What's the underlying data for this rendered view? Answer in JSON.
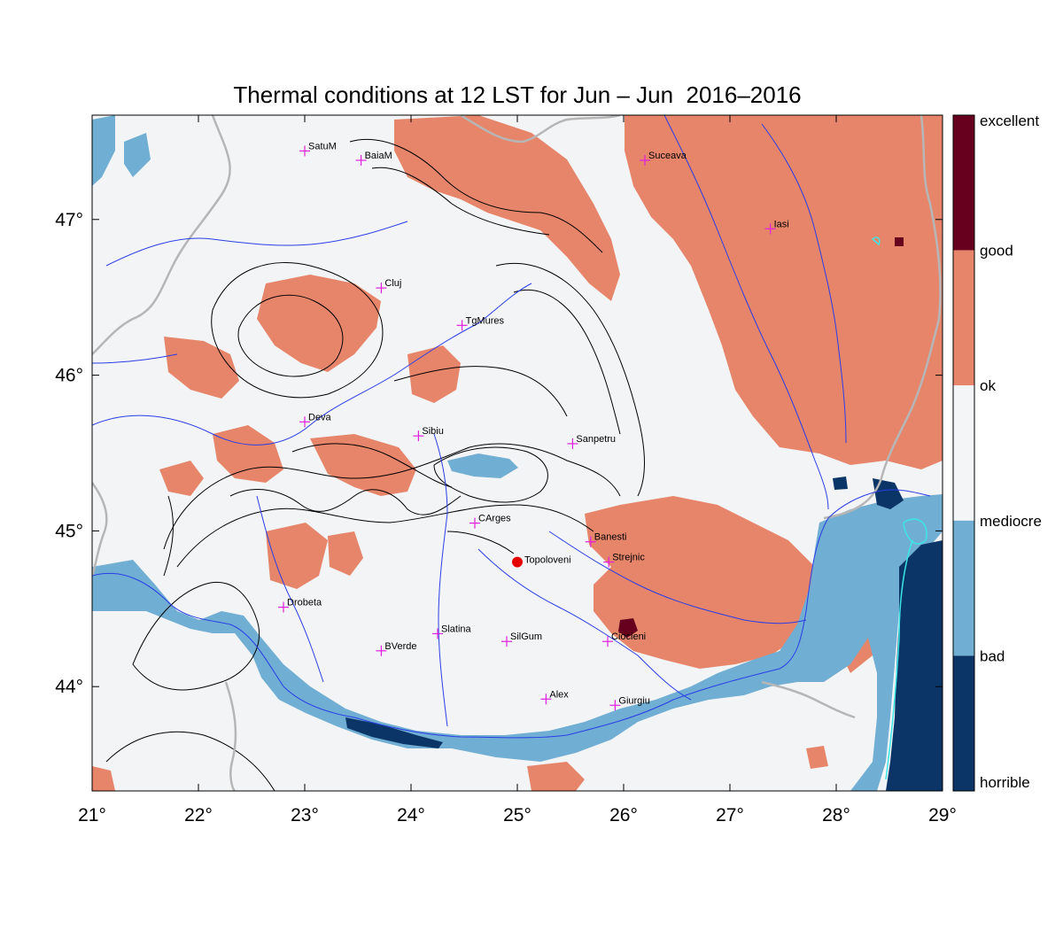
{
  "title": "Thermal conditions at 12 LST for Jun – Jun  2016–2016",
  "map": {
    "lon_range": [
      21,
      29
    ],
    "lat_range": [
      43.33,
      47.67
    ],
    "lon_ticks": [
      "21°",
      "22°",
      "23°",
      "24°",
      "25°",
      "26°",
      "27°",
      "28°",
      "29°"
    ],
    "lat_ticks": [
      "44°",
      "45°",
      "46°",
      "47°"
    ],
    "cities": [
      {
        "name": "SatuM",
        "lon": 23.0,
        "lat": 47.44
      },
      {
        "name": "BaiaM",
        "lon": 23.53,
        "lat": 47.38
      },
      {
        "name": "Suceava",
        "lon": 26.2,
        "lat": 47.38
      },
      {
        "name": "Iasi",
        "lon": 27.38,
        "lat": 46.94
      },
      {
        "name": "Cluj",
        "lon": 23.72,
        "lat": 46.56
      },
      {
        "name": "TgMures",
        "lon": 24.48,
        "lat": 46.32
      },
      {
        "name": "Deva",
        "lon": 23.0,
        "lat": 45.7
      },
      {
        "name": "Sibiu",
        "lon": 24.07,
        "lat": 45.61
      },
      {
        "name": "Sanpetru",
        "lon": 25.52,
        "lat": 45.56
      },
      {
        "name": "CArges",
        "lon": 24.6,
        "lat": 45.05
      },
      {
        "name": "Banesti",
        "lon": 25.69,
        "lat": 44.93
      },
      {
        "name": "Strejnic",
        "lon": 25.86,
        "lat": 44.8
      },
      {
        "name": "Drobeta",
        "lon": 22.8,
        "lat": 44.51
      },
      {
        "name": "Slatina",
        "lon": 24.25,
        "lat": 44.34
      },
      {
        "name": "SilGum",
        "lon": 24.9,
        "lat": 44.29
      },
      {
        "name": "Ciocieni",
        "lon": 25.85,
        "lat": 44.29
      },
      {
        "name": "BVerde",
        "lon": 23.72,
        "lat": 44.23
      },
      {
        "name": "Alex",
        "lon": 25.27,
        "lat": 43.92
      },
      {
        "name": "Giurgiu",
        "lon": 25.92,
        "lat": 43.88
      }
    ],
    "highlight_station": {
      "name": "Topoloveni",
      "lon": 25.0,
      "lat": 44.8
    }
  },
  "colorbar": {
    "labels": [
      "excellent",
      "good",
      "ok",
      "mediocre",
      "bad",
      "horrible"
    ],
    "colors": [
      "#67001f",
      "#e6856a",
      "#f4f5f7",
      "#70aed3",
      "#0a3566"
    ]
  },
  "colors": {
    "ok": "#f3f4f6",
    "good": "#e6856a",
    "excellent": "#67001f",
    "mediocre": "#70aed3",
    "bad": "#0a3566",
    "river": "#2a3ee6",
    "border": "#b6b6b6",
    "lake": "#3de6e6",
    "city": "#e020e0",
    "station": "#e60000"
  }
}
